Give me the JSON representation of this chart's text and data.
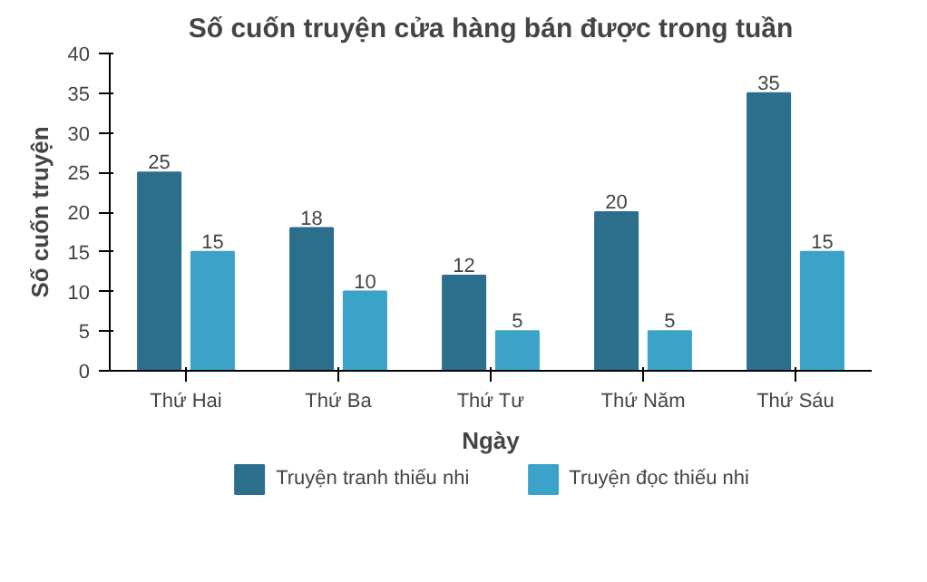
{
  "chart_data": {
    "type": "bar",
    "title": "Số cuốn truyện cửa hàng bán được trong tuần",
    "xlabel": "Ngày",
    "ylabel": "Số cuốn truyện",
    "categories": [
      "Thứ Hai",
      "Thứ Ba",
      "Thứ Tư",
      "Thứ Năm",
      "Thứ Sáu"
    ],
    "series": [
      {
        "name": "Truyện tranh thiếu nhi",
        "color": "#2b6f8c",
        "values": [
          25,
          18,
          12,
          20,
          35
        ]
      },
      {
        "name": "Truyện đọc thiếu nhi",
        "color": "#3ba3c8",
        "values": [
          15,
          10,
          5,
          5,
          15
        ]
      }
    ],
    "ylim": [
      0,
      40
    ],
    "yticks": [
      0,
      5,
      10,
      15,
      20,
      25,
      30,
      35,
      40
    ],
    "data_labels": true,
    "legend": "bottom",
    "grid": false
  }
}
